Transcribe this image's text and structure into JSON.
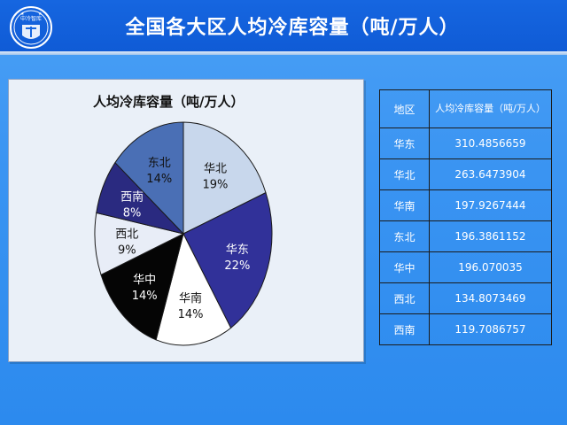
{
  "page": {
    "title": "全国各大区人均冷库容量（吨/万人）",
    "logo_text": "中冷智库"
  },
  "chart_data": {
    "type": "pie",
    "title": "人均冷库容量（吨/万人）",
    "slices": [
      {
        "label": "华北",
        "percent": "19%",
        "value": 19,
        "color": "#c8d7ec",
        "text_color": "#111111"
      },
      {
        "label": "华东",
        "percent": "22%",
        "value": 22,
        "color": "#313199",
        "text_color": "#ffffff"
      },
      {
        "label": "华南",
        "percent": "14%",
        "value": 14,
        "color": "#ffffff",
        "text_color": "#111111"
      },
      {
        "label": "华中",
        "percent": "14%",
        "value": 14,
        "color": "#050505",
        "text_color": "#ffffff"
      },
      {
        "label": "西北",
        "percent": "9%",
        "value": 9,
        "color": "#e8edf7",
        "text_color": "#111111"
      },
      {
        "label": "西南",
        "percent": "8%",
        "value": 8,
        "color": "#2a2a80",
        "text_color": "#ffffff"
      },
      {
        "label": "东北",
        "percent": "14%",
        "value": 14,
        "color": "#4a6fb5",
        "text_color": "#111111"
      }
    ],
    "legend": "none"
  },
  "table": {
    "headers": [
      "地区",
      "人均冷库容量（吨/万人）"
    ],
    "rows": [
      {
        "region": "华东",
        "value": "310.4856659"
      },
      {
        "region": "华北",
        "value": "263.6473904"
      },
      {
        "region": "华南",
        "value": "197.9267444"
      },
      {
        "region": "东北",
        "value": "196.3861152"
      },
      {
        "region": "华中",
        "value": "196.070035"
      },
      {
        "region": "西北",
        "value": "134.8073469"
      },
      {
        "region": "西南",
        "value": "119.7086757"
      }
    ]
  }
}
